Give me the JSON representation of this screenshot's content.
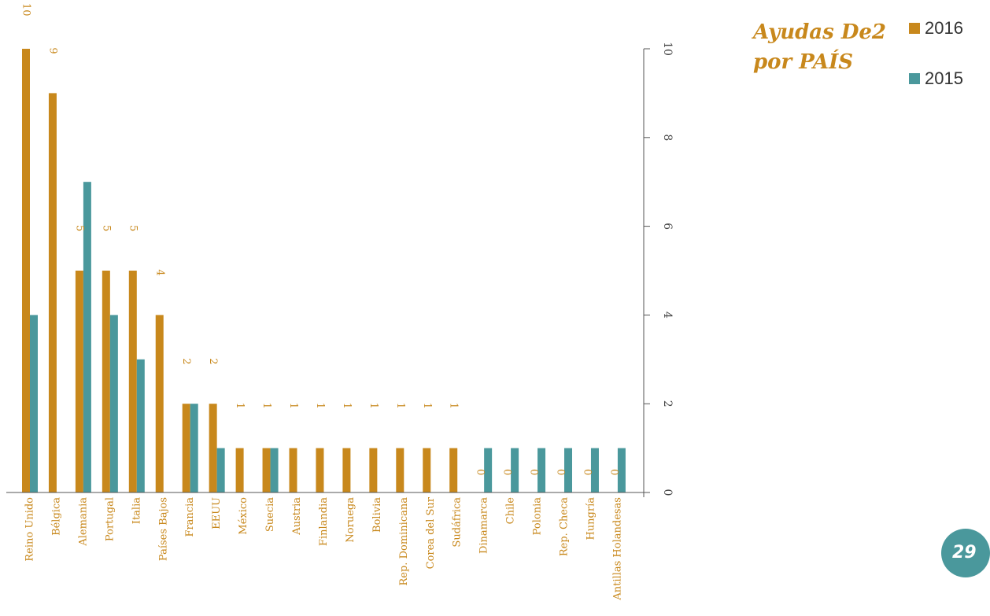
{
  "title_line1": "Ayudas De2",
  "title_line2": "por PAÍS",
  "page_number": "29",
  "colors": {
    "s2016": "#C8881C",
    "s2015": "#4A989C",
    "axis": "#555555"
  },
  "chart_data": {
    "type": "bar",
    "categories": [
      "Reino Unido",
      "Bélgica",
      "Alemania",
      "Portugal",
      "Italia",
      "Países Bajos",
      "Francia",
      "EEUU",
      "México",
      "Suecia",
      "Austria",
      "Finlandia",
      "Noruega",
      "Bolivia",
      "Rep. Dominicana",
      "Corea del Sur",
      "Sudáfrica",
      "Dinamarca",
      "Chile",
      "Polonia",
      "Rep. Checa",
      "Hungría",
      "Antillas Holandesas"
    ],
    "series": [
      {
        "name": "2016",
        "values": [
          10,
          9,
          5,
          5,
          5,
          4,
          2,
          2,
          1,
          1,
          1,
          1,
          1,
          1,
          1,
          1,
          1,
          0,
          0,
          0,
          0,
          0,
          0
        ],
        "data_labels": [
          "10",
          "9",
          "5",
          "5",
          "5",
          "4",
          "2",
          "2",
          "1",
          "1",
          "1",
          "1",
          "1",
          "1",
          "1",
          "1",
          "1",
          "0",
          "0",
          "0",
          "0",
          "0",
          "0"
        ]
      },
      {
        "name": "2015",
        "values": [
          4,
          0,
          7,
          4,
          3,
          0,
          2,
          1,
          0,
          1,
          0,
          0,
          0,
          0,
          0,
          0,
          0,
          1,
          1,
          1,
          1,
          1,
          1
        ]
      }
    ],
    "ylim": [
      0,
      10
    ],
    "yticks": [
      "0",
      "2",
      "4",
      "6",
      "8",
      "10"
    ],
    "xlabel": "",
    "ylabel": "",
    "legend_position": "top-right"
  }
}
